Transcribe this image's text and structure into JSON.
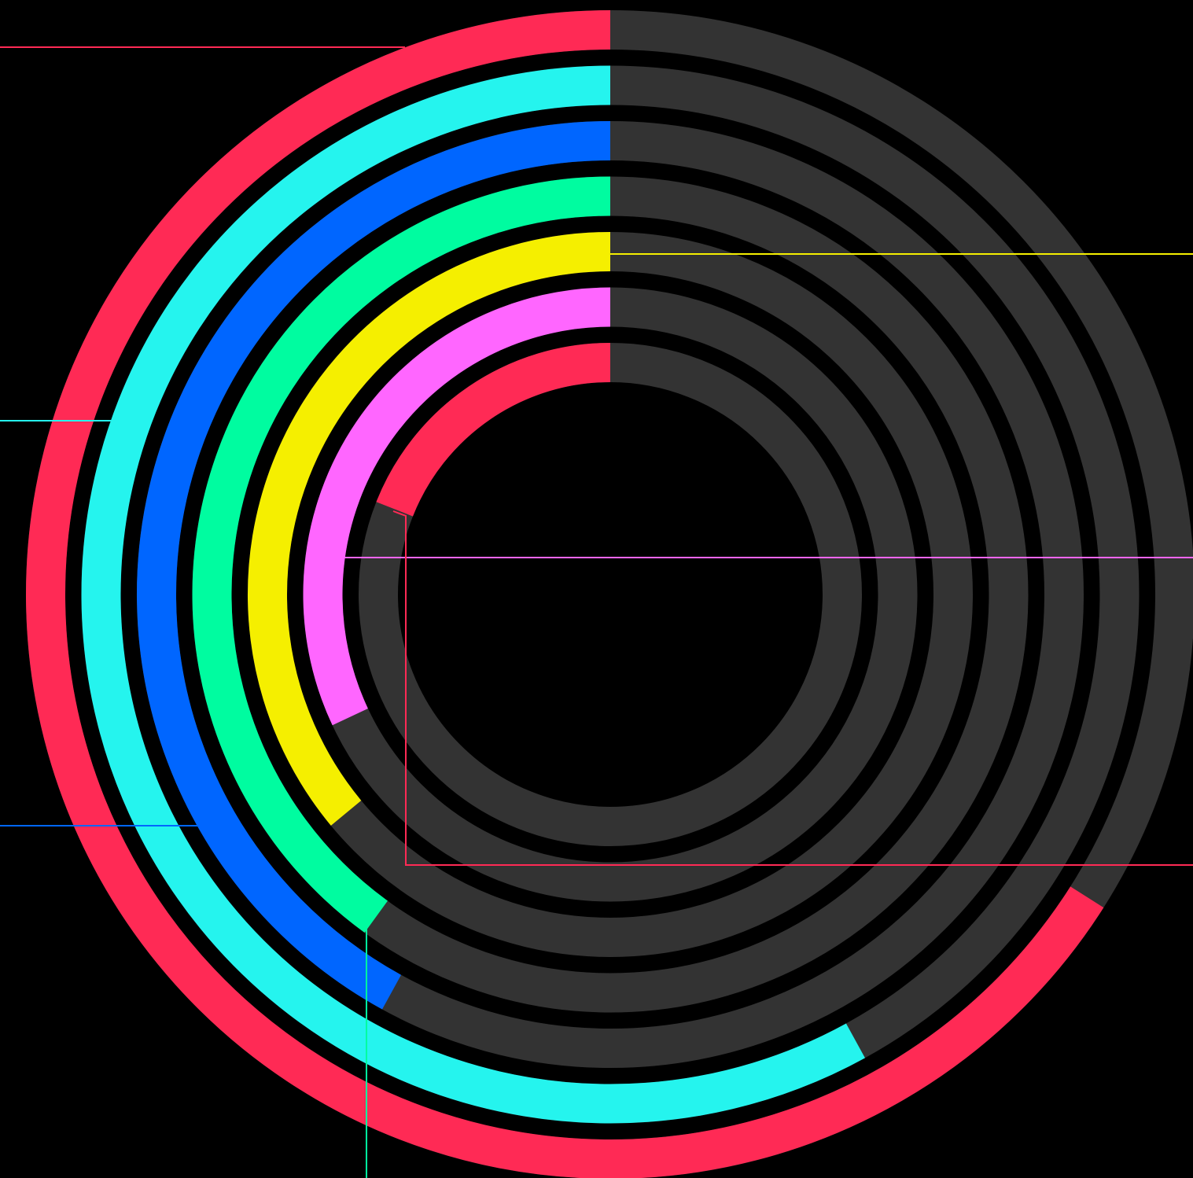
{
  "chart_data": {
    "type": "radial_bar",
    "values": [
      66,
      58,
      42,
      40,
      36,
      32,
      19
    ],
    "colors": [
      "#ff2a55",
      "#25f4ee",
      "#0066ff",
      "#00fca0",
      "#f5ef00",
      "#ff66ff",
      "#ff2a55"
    ],
    "track_color": "#333333",
    "xlim": [
      0,
      100
    ]
  }
}
